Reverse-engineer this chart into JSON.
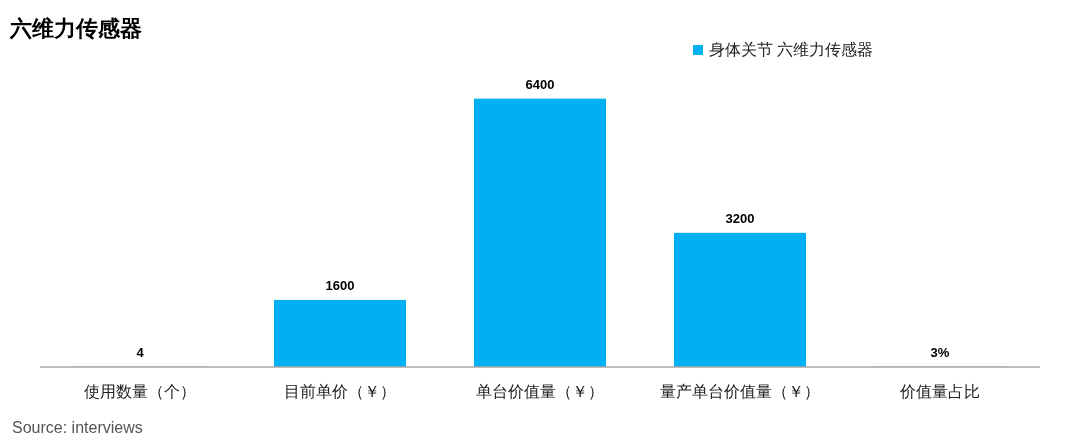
{
  "chart_data": {
    "type": "bar",
    "title": "六维力传感器",
    "categories": [
      "使用数量（个）",
      "目前单价（￥）",
      "单台价值量（￥）",
      "量产单台价值量（￥）",
      "价值量占比"
    ],
    "series": [
      {
        "name": "身体关节 六维力传感器",
        "color": "#00b0f0",
        "values": [
          4,
          1600,
          6400,
          3200,
          3
        ],
        "value_labels": [
          "4",
          "1600",
          "6400",
          "3200",
          "3%"
        ]
      }
    ],
    "legend": "top right",
    "annotations": [
      "Source: interviews"
    ]
  }
}
